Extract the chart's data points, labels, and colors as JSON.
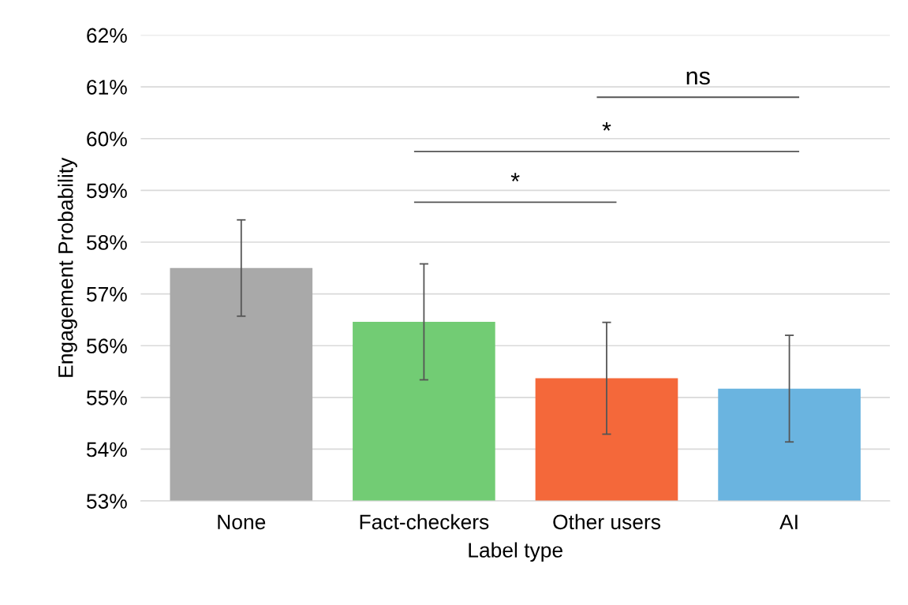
{
  "chart_data": {
    "type": "bar",
    "xlabel": "Label type",
    "ylabel": "Engagement Probability",
    "categories": [
      "None",
      "Fact-checkers",
      "Other users",
      "AI"
    ],
    "values": [
      57.5,
      56.46,
      55.37,
      55.17
    ],
    "colors": [
      "#a9a9a9",
      "#72cc74",
      "#f4683a",
      "#6ab4e0"
    ],
    "errors": [
      0.93,
      1.12,
      1.08,
      1.03
    ],
    "ylim": [
      53,
      62
    ],
    "yticks": [
      {
        "value": 53,
        "label": "53%"
      },
      {
        "value": 54,
        "label": "54%"
      },
      {
        "value": 55,
        "label": "55%"
      },
      {
        "value": 56,
        "label": "56%"
      },
      {
        "value": 57,
        "label": "57%"
      },
      {
        "value": 58,
        "label": "58%"
      },
      {
        "value": 59,
        "label": "59%"
      },
      {
        "value": 60,
        "label": "60%"
      },
      {
        "value": 61,
        "label": "61%"
      },
      {
        "value": 62,
        "label": "62%"
      }
    ],
    "grid": "y",
    "annotations": [
      "*",
      "*",
      "ns"
    ]
  }
}
